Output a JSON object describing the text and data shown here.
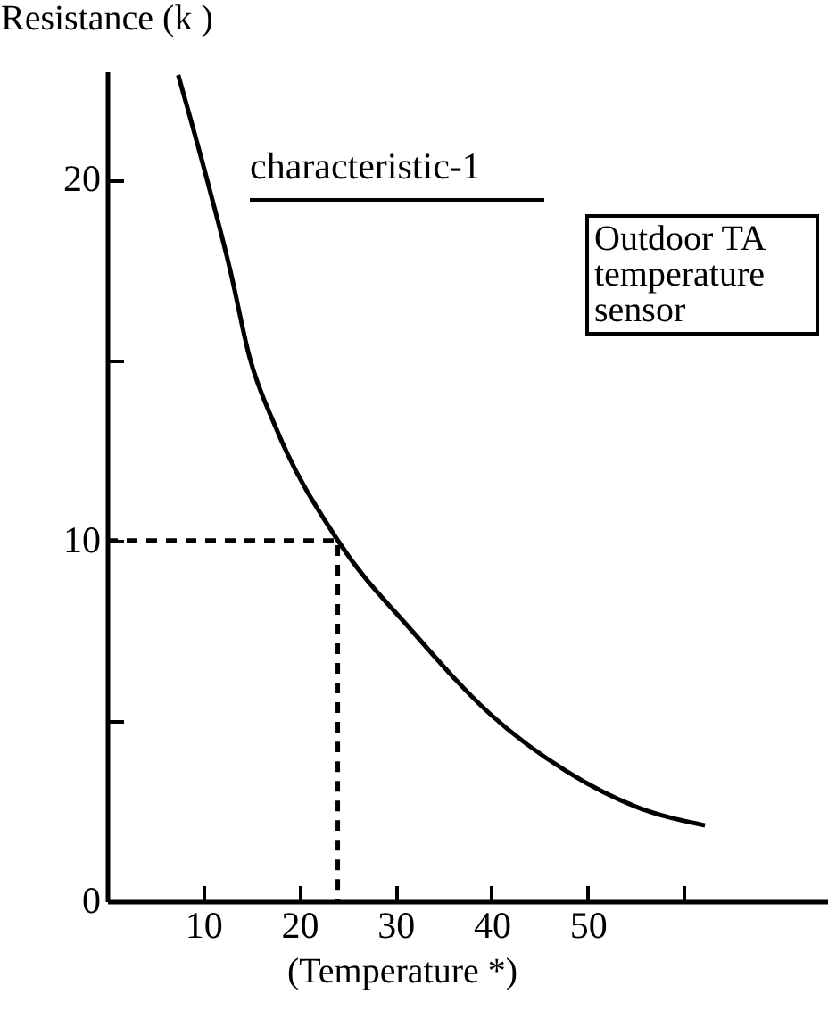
{
  "chart_data": {
    "type": "line",
    "xlabel": "(Temperature *)",
    "ylabel": "Resistance (k   )",
    "annotations": [
      "characteristic-1",
      "Outdoor TA\ntemperature\nsensor"
    ],
    "series": [
      {
        "color": "#000000",
        "x": [
          7.4,
          10.4,
          12.8,
          14.8,
          17.6,
          24,
          31.7,
          39.8,
          47.8,
          55.2,
          62.2
        ],
        "values": [
          22.9,
          20,
          17.5,
          15.1,
          13.1,
          10,
          7.5,
          5.2,
          3.6,
          2.6,
          2.1
        ]
      },
      {
        "color": "#000000",
        "x": [
          0,
          24,
          24
        ],
        "values": [
          10,
          10,
          0
        ],
        "line_style": "dashed"
      }
    ],
    "xlim": [
      0,
      75
    ],
    "ylim": [
      0,
      23
    ],
    "xticks": [
      10,
      20,
      30,
      40,
      50,
      {
        "value": 60,
        "label": null
      }
    ],
    "yticks": [
      0,
      {
        "value": 5,
        "label": null
      },
      10,
      {
        "value": 15,
        "label": null
      },
      20
    ]
  }
}
